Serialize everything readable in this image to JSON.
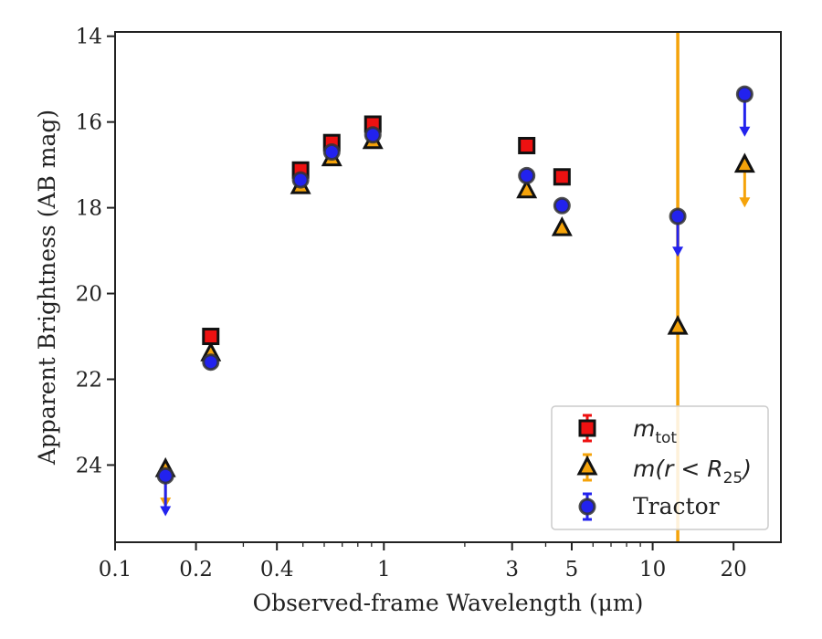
{
  "chart_data": {
    "type": "scatter",
    "xlabel": "Observed-frame Wavelength (μm)",
    "ylabel": "Apparent Brightness (AB mag)",
    "x_scale": "log",
    "xlim": [
      0.1,
      30
    ],
    "ylim": [
      25.8,
      13.9
    ],
    "y_inverted": true,
    "x_ticks": [
      {
        "value": 0.1,
        "label": "0.1"
      },
      {
        "value": 0.2,
        "label": "0.2"
      },
      {
        "value": 0.4,
        "label": "0.4"
      },
      {
        "value": 1,
        "label": "1"
      },
      {
        "value": 3,
        "label": "3"
      },
      {
        "value": 5,
        "label": "5"
      },
      {
        "value": 10,
        "label": "10"
      },
      {
        "value": 20,
        "label": "20"
      }
    ],
    "y_ticks": [
      {
        "value": 14,
        "label": "14"
      },
      {
        "value": 16,
        "label": "16"
      },
      {
        "value": 18,
        "label": "18"
      },
      {
        "value": 20,
        "label": "20"
      },
      {
        "value": 22,
        "label": "22"
      },
      {
        "value": 24,
        "label": "24"
      }
    ],
    "legend_position": "lower-right",
    "series": [
      {
        "name": "m_tot",
        "marker": "square",
        "color": "#ee1111",
        "points": [
          {
            "x": 0.227,
            "y": 21.0
          },
          {
            "x": 0.49,
            "y": 17.12
          },
          {
            "x": 0.64,
            "y": 16.48
          },
          {
            "x": 0.91,
            "y": 16.05
          },
          {
            "x": 3.4,
            "y": 16.55
          },
          {
            "x": 4.6,
            "y": 17.28
          }
        ]
      },
      {
        "name": "m(r < R25)",
        "marker": "triangle",
        "color": "#f5a30a",
        "points": [
          {
            "x": 0.154,
            "y": 24.1,
            "upper_limit": true,
            "arrow_to": 24.95
          },
          {
            "x": 0.227,
            "y": 21.4
          },
          {
            "x": 0.49,
            "y": 17.5
          },
          {
            "x": 0.64,
            "y": 16.85
          },
          {
            "x": 0.91,
            "y": 16.45
          },
          {
            "x": 3.4,
            "y": 17.6
          },
          {
            "x": 4.6,
            "y": 18.48
          },
          {
            "x": 12.4,
            "y": 20.78,
            "errorbar_full": true
          },
          {
            "x": 22,
            "y": 17.0,
            "upper_limit": true,
            "arrow_to": 17.95
          }
        ]
      },
      {
        "name": "Tractor",
        "marker": "circle",
        "color": "#2222ee",
        "points": [
          {
            "x": 0.154,
            "y": 24.25,
            "upper_limit": true,
            "arrow_to": 25.15
          },
          {
            "x": 0.227,
            "y": 21.6
          },
          {
            "x": 0.49,
            "y": 17.35
          },
          {
            "x": 0.64,
            "y": 16.7
          },
          {
            "x": 0.91,
            "y": 16.3
          },
          {
            "x": 3.4,
            "y": 17.25
          },
          {
            "x": 4.6,
            "y": 17.95
          },
          {
            "x": 12.4,
            "y": 18.2,
            "upper_limit": true,
            "arrow_to": 19.1
          },
          {
            "x": 22,
            "y": 15.35,
            "upper_limit": true,
            "arrow_to": 16.3
          }
        ]
      }
    ]
  },
  "legend": {
    "tot_main": "m",
    "tot_sub": "tot",
    "r25_main": "m(r < R",
    "r25_sub": "25",
    "r25_close": ")",
    "tractor": "Tractor"
  }
}
